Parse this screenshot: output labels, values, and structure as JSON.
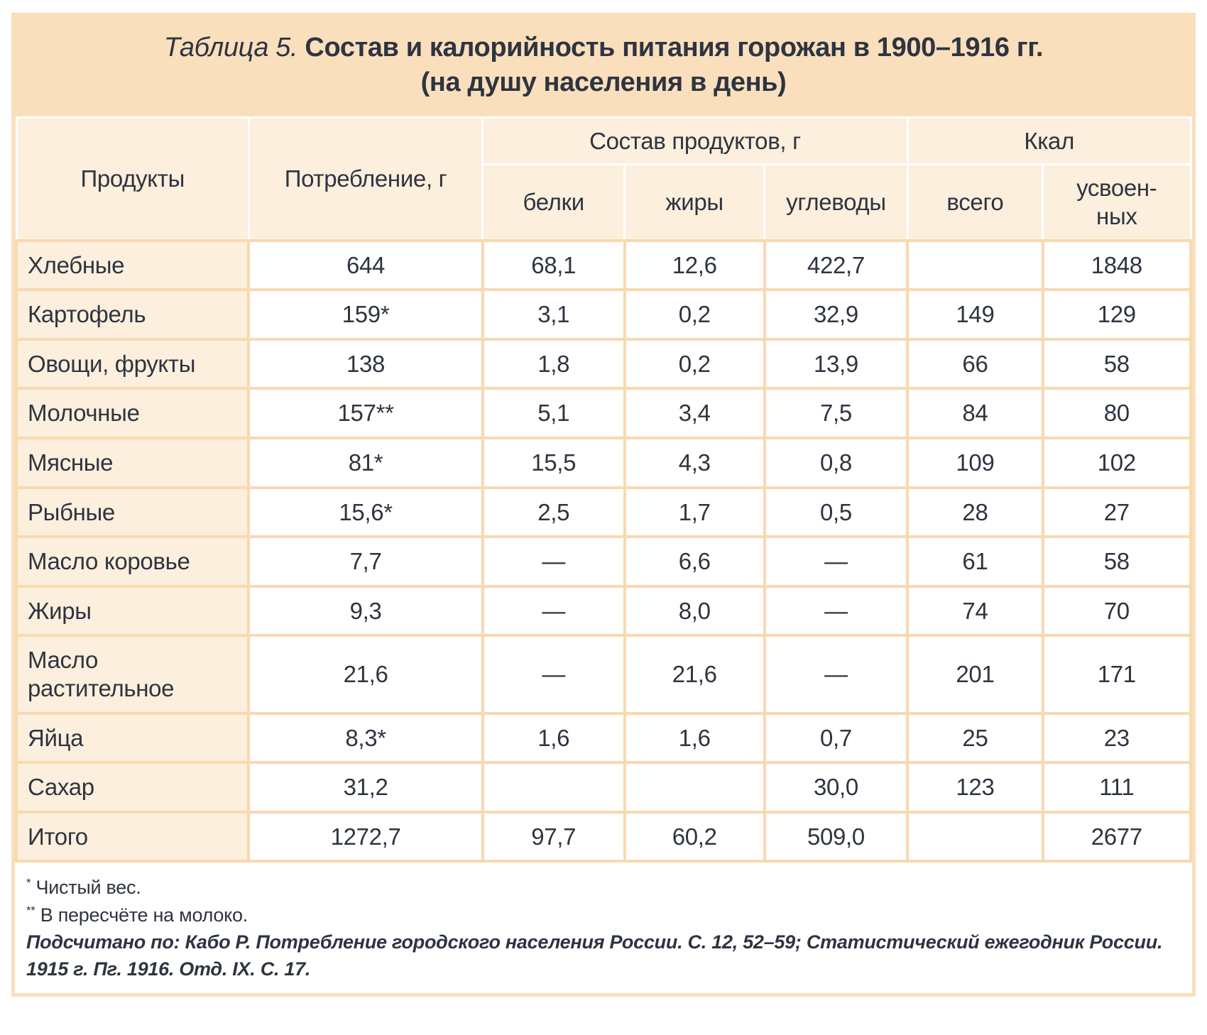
{
  "title": {
    "label": "Таблица 5.",
    "heading": "Состав и калорийность питания горожан в 1900–1916 гг.",
    "subheading": "(на душу населения в день)"
  },
  "table": {
    "headers": {
      "products": "Продукты",
      "consumption": "Потребление, г",
      "composition_group": "Состав продуктов, г",
      "kcal_group": "Ккал",
      "proteins": "белки",
      "fats": "жиры",
      "carbs": "углеводы",
      "kcal_total": "всего",
      "kcal_absorbed": "усвоен-\nных"
    },
    "rows": [
      {
        "cells": [
          "Хлебные",
          "644",
          "68,1",
          "12,6",
          "422,7",
          "",
          "1848"
        ]
      },
      {
        "cells": [
          "Картофель",
          "159*",
          "3,1",
          "0,2",
          "32,9",
          "149",
          "129"
        ]
      },
      {
        "cells": [
          "Овощи, фрукты",
          "138",
          "1,8",
          "0,2",
          "13,9",
          "66",
          "58"
        ]
      },
      {
        "cells": [
          "Молочные",
          "157**",
          "5,1",
          "3,4",
          "7,5",
          "84",
          "80"
        ]
      },
      {
        "cells": [
          "Мясные",
          "81*",
          "15,5",
          "4,3",
          "0,8",
          "109",
          "102"
        ]
      },
      {
        "cells": [
          "Рыбные",
          "15,6*",
          "2,5",
          "1,7",
          "0,5",
          "28",
          "27"
        ]
      },
      {
        "cells": [
          "Масло коровье",
          "7,7",
          "—",
          "6,6",
          "—",
          "61",
          "58"
        ]
      },
      {
        "cells": [
          "Жиры",
          "9,3",
          "—",
          "8,0",
          "—",
          "74",
          "70"
        ]
      },
      {
        "cells": [
          "Масло растительное",
          "21,6",
          "—",
          "21,6",
          "—",
          "201",
          "171"
        ]
      },
      {
        "cells": [
          "Яйца",
          "8,3*",
          "1,6",
          "1,6",
          "0,7",
          "25",
          "23"
        ]
      },
      {
        "cells": [
          "Сахар",
          "31,2",
          "",
          "",
          "30,0",
          "123",
          "111"
        ]
      },
      {
        "cells": [
          "Итого",
          "1272,7",
          "97,7",
          "60,2",
          "509,0",
          "",
          "2677"
        ]
      }
    ]
  },
  "footnotes": {
    "items": [
      {
        "marker": "*",
        "text": "Чистый вес."
      },
      {
        "marker": "**",
        "text": "В пересчёте на молоко."
      }
    ],
    "source": "Подсчитано по: Кабо Р. Потребление городского населения России. С. 12, 52–59; Статистический ежегодник России. 1915 г. Пг. 1916. Отд. IX. С. 17."
  },
  "colors": {
    "band_peach": "#fadfbd",
    "cell_peach": "#fcefdd",
    "cell_white": "#ffffff",
    "border_peach": "#f8d9b0",
    "header_divider": "#ffffff",
    "text_dark": "#2e3440",
    "page_bg": "#ffffff"
  }
}
